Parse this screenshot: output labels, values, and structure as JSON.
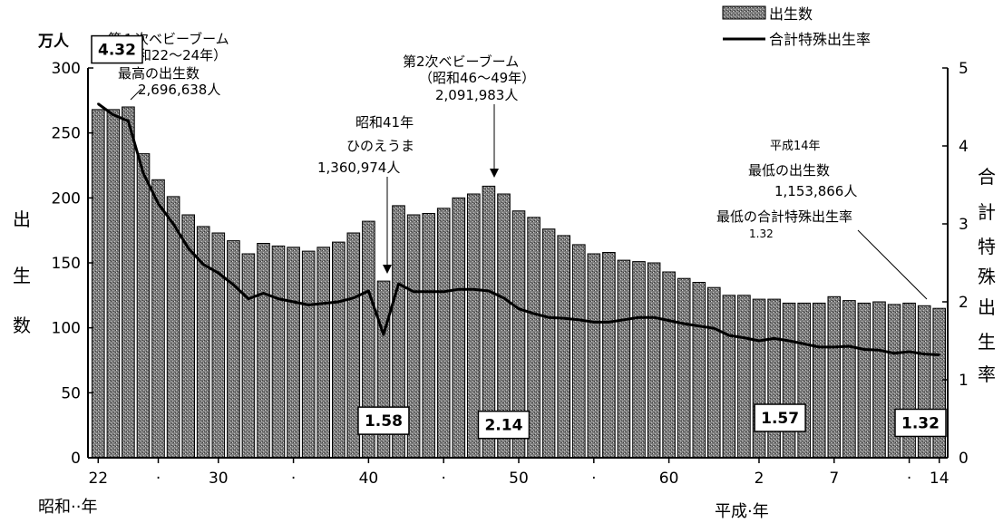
{
  "chart_data": {
    "type": "bar",
    "x": [
      22,
      23,
      24,
      25,
      26,
      27,
      28,
      29,
      30,
      31,
      32,
      33,
      34,
      35,
      36,
      37,
      38,
      39,
      40,
      41,
      42,
      43,
      44,
      45,
      46,
      47,
      48,
      49,
      50,
      51,
      52,
      53,
      54,
      55,
      56,
      57,
      58,
      59,
      60,
      61,
      62,
      63,
      64,
      1,
      2,
      3,
      4,
      5,
      6,
      7,
      8,
      9,
      10,
      11,
      12,
      13,
      14
    ],
    "x_ticks": [
      {
        "x": 22,
        "label": "22"
      },
      {
        "x": 26,
        "label": "·"
      },
      {
        "x": 30,
        "label": "30"
      },
      {
        "x": 35,
        "label": "·"
      },
      {
        "x": 40,
        "label": "40"
      },
      {
        "x": 45,
        "label": "·"
      },
      {
        "x": 50,
        "label": "50"
      },
      {
        "x": 55,
        "label": "·"
      },
      {
        "x": 60,
        "label": "60"
      },
      {
        "x": 2,
        "label": "2"
      },
      {
        "x": 7,
        "label": "7"
      },
      {
        "x": 12,
        "label": "·"
      },
      {
        "x": 14,
        "label": "14"
      }
    ],
    "series": [
      {
        "name": "出生数",
        "type": "bar",
        "axis": "left",
        "values": [
          268,
          268,
          270,
          234,
          214,
          201,
          187,
          178,
          173,
          167,
          157,
          165,
          163,
          162,
          159,
          162,
          166,
          173,
          182,
          136,
          194,
          187,
          188,
          192,
          200,
          203,
          209,
          203,
          190,
          185,
          176,
          171,
          164,
          157,
          158,
          152,
          151,
          150,
          143,
          138,
          135,
          131,
          125,
          125,
          122,
          122,
          119,
          119,
          119,
          124,
          121,
          119,
          120,
          118,
          119,
          117,
          115
        ]
      },
      {
        "name": "合計特殊出生率",
        "type": "line",
        "axis": "right",
        "values": [
          4.54,
          4.4,
          4.32,
          3.65,
          3.26,
          3.0,
          2.69,
          2.48,
          2.37,
          2.22,
          2.04,
          2.11,
          2.04,
          2.0,
          1.96,
          1.98,
          2.0,
          2.05,
          2.14,
          1.58,
          2.23,
          2.13,
          2.13,
          2.13,
          2.16,
          2.16,
          2.14,
          2.05,
          1.91,
          1.85,
          1.8,
          1.79,
          1.77,
          1.74,
          1.74,
          1.77,
          1.8,
          1.8,
          1.76,
          1.72,
          1.69,
          1.66,
          1.57,
          1.54,
          1.5,
          1.53,
          1.5,
          1.46,
          1.42,
          1.42,
          1.43,
          1.39,
          1.38,
          1.34,
          1.36,
          1.33,
          1.32
        ]
      }
    ],
    "y_left": {
      "label_unit": "万人",
      "label": [
        "出",
        "生",
        "数"
      ],
      "ylim": [
        0,
        300
      ],
      "ticks": [
        0,
        50,
        100,
        150,
        200,
        250,
        300
      ]
    },
    "y_right": {
      "label": [
        "合",
        "計",
        "特",
        "殊",
        "出",
        "生",
        "率"
      ],
      "ylim": [
        0,
        5
      ],
      "ticks": [
        0,
        1,
        2,
        3,
        4,
        5
      ]
    },
    "x_label_left": "昭和··年",
    "x_label_right": "平成·年",
    "legend": {
      "position": "top-right",
      "items": [
        {
          "name": "出生数",
          "kind": "bar"
        },
        {
          "name": "合計特殊出生率",
          "kind": "line"
        }
      ]
    },
    "value_boxes": [
      {
        "x": 22,
        "value": "4.32"
      },
      {
        "x": 41,
        "value": "1.58"
      },
      {
        "x": 49,
        "value": "2.14"
      },
      {
        "x": 4,
        "value": "1.57"
      },
      {
        "x": 14,
        "value": "1.32"
      }
    ],
    "annotations": [
      {
        "id": "first-boom",
        "lines": [
          "第１次ベビーブーム",
          "（昭和22～24年）",
          "最高の出生数",
          "2,696,638人"
        ]
      },
      {
        "id": "hinoeuma",
        "lines": [
          "昭和41年",
          "ひのえうま",
          "1,360,974人"
        ]
      },
      {
        "id": "second-boom",
        "lines": [
          "第2次ベビーブーム",
          "（昭和46～49年）",
          "2,091,983人"
        ]
      },
      {
        "id": "heisei14",
        "lines": [
          "平成14年",
          "最低の出生数",
          "1,153,866人",
          "最低の合計特殊出生率",
          "1.32"
        ]
      }
    ],
    "grid": false
  }
}
